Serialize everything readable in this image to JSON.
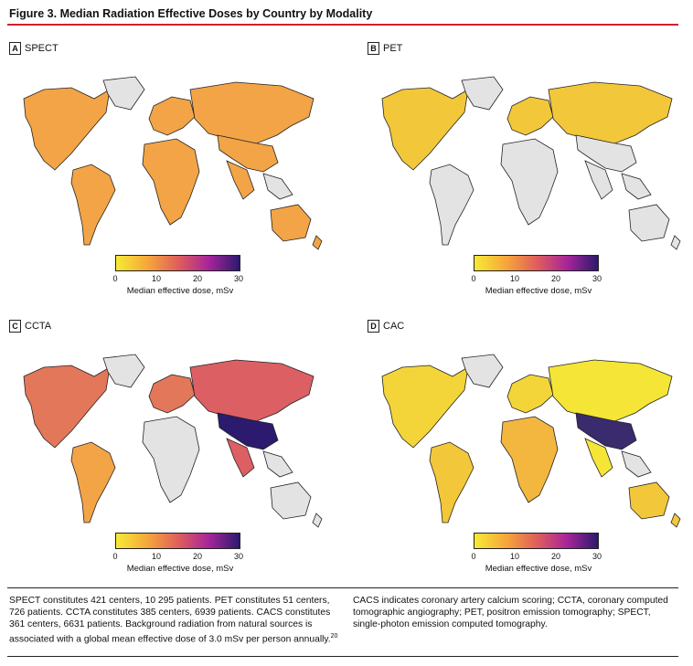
{
  "figure": {
    "title": "Figure 3. Median Radiation Effective Doses by Country by Modality"
  },
  "panels": [
    {
      "letter": "A",
      "name": "SPECT"
    },
    {
      "letter": "B",
      "name": "PET"
    },
    {
      "letter": "C",
      "name": "CCTA"
    },
    {
      "letter": "D",
      "name": "CAC"
    }
  ],
  "colorbar": {
    "ticks": [
      "0",
      "10",
      "20",
      "30"
    ],
    "title": "Median effective dose, mSv",
    "colors": [
      "#f6ea36",
      "#f6a83a",
      "#e05f5b",
      "#a7259a",
      "#2b1a6e"
    ]
  },
  "footnote": {
    "left_text": "SPECT constitutes 421 centers, 10 295 patients. PET constitutes 51 centers, 726 patients. CCTA constitutes 385 centers, 6939 patients. CACS constitutes 361 centers, 6631 patients. Background radiation from natural sources is associated with a global mean effective dose of 3.0 mSv per person annually.",
    "left_ref": "20",
    "right_text": "CACS indicates coronary artery calcium scoring; CCTA, coronary computed tomographic angiography; PET, positron emission tomography; SPECT, single-photon emission computed tomography."
  }
}
